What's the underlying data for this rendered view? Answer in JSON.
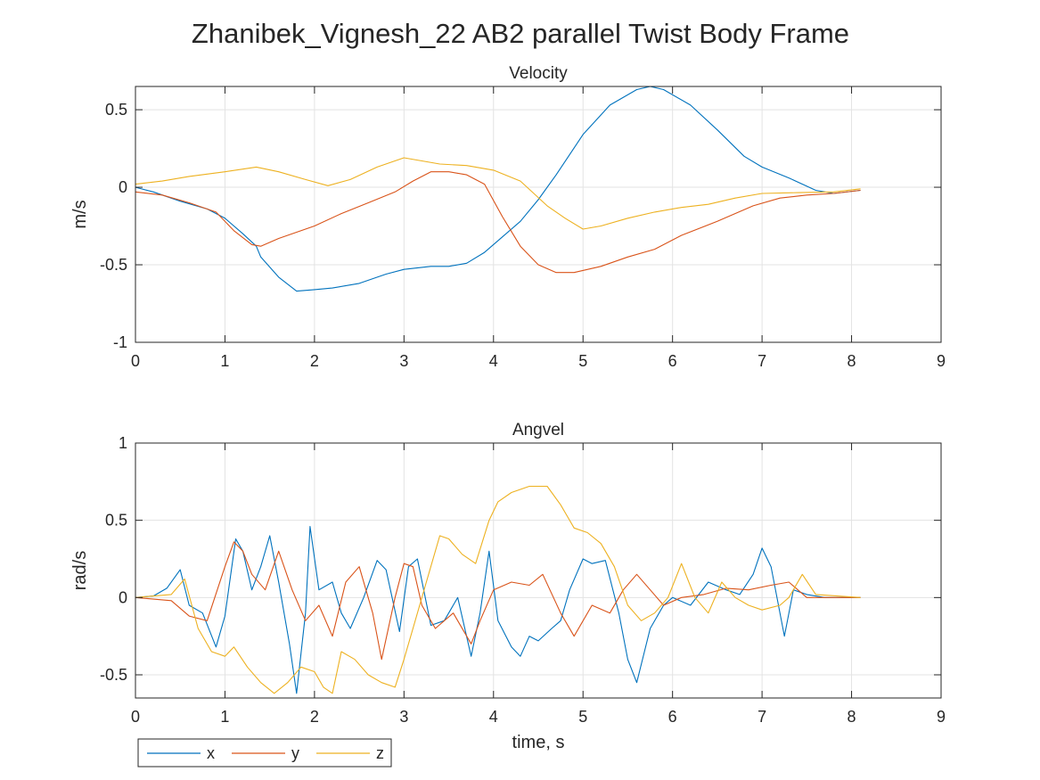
{
  "figure": {
    "title": "Zhanibek_Vignesh_22 AB2 parallel Twist Body Frame"
  },
  "legend": {
    "placement": "bottom-left",
    "entries": [
      "x",
      "y",
      "z"
    ]
  },
  "colors": {
    "x": "#0072BD",
    "y": "#D95319",
    "z": "#EDB120"
  },
  "chart_data": [
    {
      "type": "line",
      "title": "Velocity",
      "xlabel": "",
      "ylabel": "m/s",
      "xlim": [
        0,
        9
      ],
      "ylim": [
        -1,
        0.65
      ],
      "xticks": [
        0,
        1,
        2,
        3,
        4,
        5,
        6,
        7,
        8,
        9
      ],
      "yticks": [
        -1,
        -0.5,
        0,
        0.5
      ],
      "ytick_labels": [
        "-1",
        "-0.5",
        "0",
        "0.5"
      ],
      "grid": true,
      "series": [
        {
          "name": "x",
          "x": [
            0,
            0.2,
            0.5,
            0.8,
            1.0,
            1.2,
            1.35,
            1.4,
            1.6,
            1.8,
            2.0,
            2.2,
            2.5,
            2.8,
            3.0,
            3.3,
            3.5,
            3.7,
            3.9,
            4.1,
            4.3,
            4.5,
            4.7,
            5.0,
            5.3,
            5.6,
            5.75,
            5.9,
            6.2,
            6.5,
            6.8,
            7.0,
            7.3,
            7.6,
            7.8,
            8.1
          ],
          "values": [
            0.0,
            -0.03,
            -0.09,
            -0.14,
            -0.2,
            -0.3,
            -0.38,
            -0.45,
            -0.58,
            -0.67,
            -0.66,
            -0.65,
            -0.62,
            -0.56,
            -0.53,
            -0.51,
            -0.51,
            -0.49,
            -0.42,
            -0.32,
            -0.22,
            -0.08,
            0.08,
            0.34,
            0.53,
            0.63,
            0.65,
            0.63,
            0.53,
            0.37,
            0.2,
            0.13,
            0.06,
            -0.02,
            -0.04,
            -0.02
          ]
        },
        {
          "name": "y",
          "x": [
            0,
            0.3,
            0.6,
            0.9,
            1.1,
            1.3,
            1.4,
            1.6,
            1.8,
            2.0,
            2.3,
            2.6,
            2.9,
            3.1,
            3.3,
            3.5,
            3.7,
            3.9,
            4.1,
            4.3,
            4.5,
            4.7,
            4.9,
            5.2,
            5.5,
            5.8,
            6.1,
            6.5,
            6.9,
            7.2,
            7.5,
            7.8,
            8.1
          ],
          "values": [
            -0.03,
            -0.05,
            -0.1,
            -0.16,
            -0.28,
            -0.37,
            -0.38,
            -0.33,
            -0.29,
            -0.25,
            -0.17,
            -0.1,
            -0.03,
            0.04,
            0.1,
            0.1,
            0.08,
            0.02,
            -0.19,
            -0.38,
            -0.5,
            -0.55,
            -0.55,
            -0.51,
            -0.45,
            -0.4,
            -0.31,
            -0.22,
            -0.12,
            -0.07,
            -0.05,
            -0.04,
            -0.02
          ]
        },
        {
          "name": "z",
          "x": [
            0,
            0.3,
            0.6,
            1.0,
            1.35,
            1.6,
            1.9,
            2.15,
            2.4,
            2.7,
            3.0,
            3.2,
            3.4,
            3.7,
            4.0,
            4.3,
            4.45,
            4.6,
            4.8,
            5.0,
            5.2,
            5.5,
            5.8,
            6.1,
            6.4,
            6.7,
            7.0,
            7.4,
            7.8,
            8.1
          ],
          "values": [
            0.02,
            0.04,
            0.07,
            0.1,
            0.13,
            0.1,
            0.05,
            0.01,
            0.05,
            0.13,
            0.19,
            0.17,
            0.15,
            0.14,
            0.11,
            0.04,
            -0.04,
            -0.12,
            -0.2,
            -0.27,
            -0.25,
            -0.2,
            -0.16,
            -0.13,
            -0.11,
            -0.07,
            -0.04,
            -0.035,
            -0.03,
            -0.01
          ]
        }
      ]
    },
    {
      "type": "line",
      "title": "Angvel",
      "xlabel": "time, s",
      "ylabel": "rad/s",
      "xlim": [
        0,
        9
      ],
      "ylim": [
        -0.65,
        1
      ],
      "xticks": [
        0,
        1,
        2,
        3,
        4,
        5,
        6,
        7,
        8,
        9
      ],
      "yticks": [
        -0.5,
        0,
        0.5,
        1
      ],
      "ytick_labels": [
        "-0.5",
        "0",
        "0.5",
        "1"
      ],
      "grid": true,
      "series": [
        {
          "name": "x",
          "x": [
            0,
            0.2,
            0.35,
            0.5,
            0.6,
            0.75,
            0.9,
            1.0,
            1.12,
            1.2,
            1.3,
            1.4,
            1.5,
            1.6,
            1.72,
            1.8,
            1.9,
            1.95,
            2.05,
            2.2,
            2.3,
            2.4,
            2.55,
            2.7,
            2.8,
            2.95,
            3.05,
            3.15,
            3.3,
            3.45,
            3.6,
            3.75,
            3.85,
            3.95,
            4.05,
            4.2,
            4.3,
            4.4,
            4.5,
            4.65,
            4.75,
            4.85,
            5.0,
            5.1,
            5.25,
            5.4,
            5.5,
            5.6,
            5.75,
            5.9,
            6.0,
            6.2,
            6.4,
            6.6,
            6.75,
            6.9,
            7.0,
            7.1,
            7.2,
            7.25,
            7.35,
            7.5,
            7.7,
            8.1
          ],
          "values": [
            0.0,
            0.01,
            0.06,
            0.18,
            -0.05,
            -0.1,
            -0.32,
            -0.12,
            0.38,
            0.3,
            0.05,
            0.2,
            0.4,
            0.1,
            -0.3,
            -0.62,
            -0.1,
            0.46,
            0.05,
            0.1,
            -0.1,
            -0.2,
            0.0,
            0.24,
            0.18,
            -0.22,
            0.2,
            0.25,
            -0.18,
            -0.15,
            0.0,
            -0.38,
            -0.1,
            0.3,
            -0.15,
            -0.32,
            -0.38,
            -0.25,
            -0.28,
            -0.2,
            -0.15,
            0.05,
            0.25,
            0.22,
            0.24,
            -0.1,
            -0.4,
            -0.55,
            -0.2,
            -0.05,
            0.0,
            -0.05,
            0.1,
            0.05,
            0.02,
            0.15,
            0.32,
            0.2,
            -0.1,
            -0.25,
            0.05,
            0.02,
            0.0,
            0.0
          ]
        },
        {
          "name": "y",
          "x": [
            0,
            0.4,
            0.6,
            0.8,
            1.0,
            1.1,
            1.2,
            1.3,
            1.45,
            1.6,
            1.75,
            1.9,
            2.05,
            2.2,
            2.35,
            2.5,
            2.65,
            2.75,
            2.9,
            3.0,
            3.1,
            3.2,
            3.35,
            3.55,
            3.75,
            3.85,
            4.0,
            4.2,
            4.4,
            4.55,
            4.75,
            4.9,
            5.1,
            5.3,
            5.45,
            5.6,
            5.75,
            5.9,
            6.1,
            6.35,
            6.6,
            6.85,
            7.1,
            7.3,
            7.5,
            8.1
          ],
          "values": [
            0.0,
            -0.02,
            -0.12,
            -0.15,
            0.2,
            0.36,
            0.3,
            0.15,
            0.05,
            0.3,
            0.05,
            -0.15,
            -0.05,
            -0.25,
            0.1,
            0.2,
            -0.1,
            -0.4,
            0.0,
            0.22,
            0.2,
            -0.05,
            -0.2,
            -0.1,
            -0.3,
            -0.15,
            0.05,
            0.1,
            0.08,
            0.15,
            -0.1,
            -0.25,
            -0.05,
            -0.1,
            0.05,
            0.15,
            0.05,
            -0.05,
            0.0,
            0.02,
            0.06,
            0.05,
            0.08,
            0.1,
            0.0,
            0.0
          ]
        },
        {
          "name": "z",
          "x": [
            0,
            0.4,
            0.55,
            0.7,
            0.85,
            1.0,
            1.1,
            1.25,
            1.4,
            1.55,
            1.7,
            1.85,
            2.0,
            2.1,
            2.2,
            2.3,
            2.45,
            2.6,
            2.75,
            2.9,
            3.0,
            3.1,
            3.25,
            3.4,
            3.5,
            3.65,
            3.8,
            3.95,
            4.05,
            4.2,
            4.4,
            4.6,
            4.75,
            4.9,
            5.05,
            5.2,
            5.35,
            5.5,
            5.65,
            5.8,
            5.95,
            6.1,
            6.25,
            6.4,
            6.55,
            6.7,
            6.85,
            7.0,
            7.2,
            7.3,
            7.45,
            7.6,
            8.1
          ],
          "values": [
            0.0,
            0.02,
            0.12,
            -0.2,
            -0.35,
            -0.38,
            -0.32,
            -0.45,
            -0.55,
            -0.62,
            -0.55,
            -0.45,
            -0.48,
            -0.58,
            -0.62,
            -0.35,
            -0.4,
            -0.5,
            -0.55,
            -0.58,
            -0.4,
            -0.2,
            0.1,
            0.4,
            0.38,
            0.28,
            0.22,
            0.5,
            0.62,
            0.68,
            0.72,
            0.72,
            0.6,
            0.45,
            0.42,
            0.35,
            0.2,
            -0.05,
            -0.15,
            -0.1,
            0.0,
            0.22,
            0.0,
            -0.1,
            0.1,
            0.0,
            -0.05,
            -0.08,
            -0.05,
            0.0,
            0.15,
            0.02,
            0.0
          ]
        }
      ]
    }
  ]
}
